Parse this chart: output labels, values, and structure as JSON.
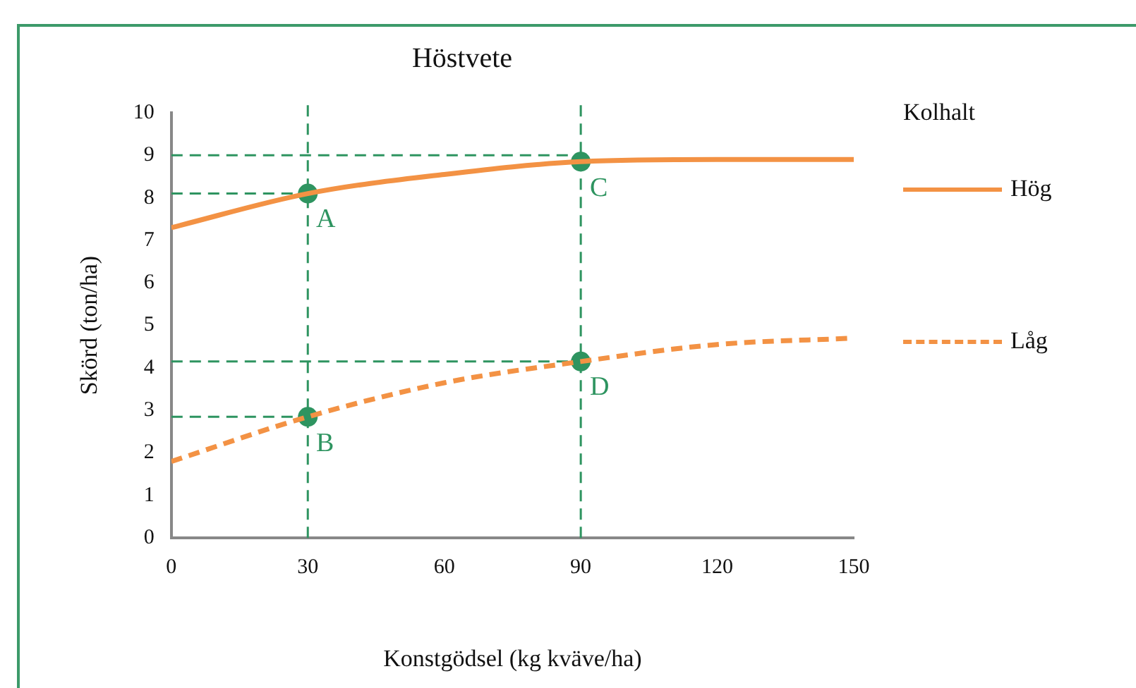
{
  "chart_data": {
    "type": "line",
    "title": "Höstvete",
    "xlabel": "Konstgödsel (kg kväve/ha)",
    "ylabel": "Skörd (ton/ha)",
    "legend_title": "Kolhalt",
    "legend": "right",
    "x": [
      0,
      30,
      60,
      90,
      120,
      150
    ],
    "xlim": [
      0,
      150
    ],
    "xticks": [
      0,
      30,
      60,
      90,
      120,
      150
    ],
    "ylim": [
      0,
      10
    ],
    "yticks": [
      0,
      1,
      2,
      3,
      4,
      5,
      6,
      7,
      8,
      9,
      10
    ],
    "series": [
      {
        "name": "Hög",
        "color": "#f39244",
        "values": [
          7.3,
          8.1,
          8.55,
          8.85,
          8.9,
          8.9
        ],
        "line_style": "solid",
        "marker": "none"
      },
      {
        "name": "Låg",
        "color": "#f39244",
        "values": [
          1.8,
          2.85,
          3.65,
          4.15,
          4.55,
          4.7
        ],
        "line_style": "dashed",
        "marker": "none"
      },
      {
        "type": "line",
        "color": "#2e9460",
        "x": [
          0,
          90
        ],
        "values": [
          9,
          9
        ],
        "line_style": "dashed",
        "marker": "none"
      },
      {
        "type": "line",
        "color": "#2e9460",
        "x": [
          0,
          30
        ],
        "values": [
          8.1,
          8.1
        ],
        "line_style": "dashed",
        "marker": "none"
      },
      {
        "type": "line",
        "color": "#2e9460",
        "x": [
          0,
          90
        ],
        "values": [
          4.15,
          4.15
        ],
        "line_style": "dashed",
        "marker": "none"
      },
      {
        "type": "line",
        "color": "#2e9460",
        "x": [
          0,
          30
        ],
        "values": [
          2.85,
          2.85
        ],
        "line_style": "dashed",
        "marker": "none"
      },
      {
        "type": "scatter",
        "color": "#2e9460",
        "x": [
          30,
          30,
          90,
          90
        ],
        "values": [
          8.1,
          2.85,
          8.85,
          4.15
        ],
        "marker": "circle",
        "value_labels": [
          "A",
          "B",
          "C",
          "D"
        ]
      }
    ],
    "ref_lines": [
      {
        "axis": "x",
        "value": 30,
        "color": "#2e9460",
        "line_style": "dashed"
      },
      {
        "axis": "x",
        "value": 90,
        "color": "#2e9460",
        "line_style": "dashed"
      }
    ]
  }
}
